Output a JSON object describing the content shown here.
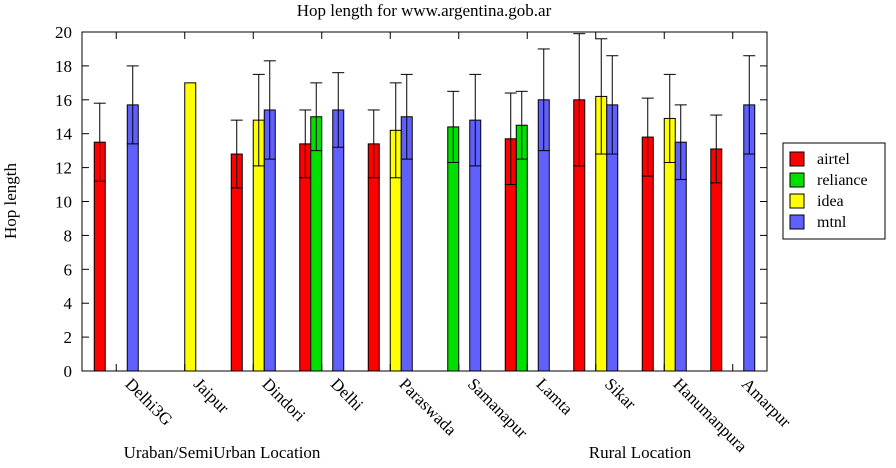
{
  "chart_data": {
    "type": "bar",
    "title": "Hop length for www.argentina.gob.ar",
    "xlabel": "",
    "ylabel": "Hop length",
    "ylim": [
      0,
      20
    ],
    "yticks": [
      0,
      2,
      4,
      6,
      8,
      10,
      12,
      14,
      16,
      18,
      20
    ],
    "grid": false,
    "legend_position": "right",
    "categories": [
      "Delhi3G",
      "Jaipur",
      "Dindori",
      "Delhi",
      "Paraswada",
      "Samanapur",
      "Lamta",
      "Sikar",
      "Hanumanpura",
      "Amarpur"
    ],
    "series": [
      {
        "name": "airtel",
        "color": "#ff0000",
        "values": [
          13.5,
          null,
          12.8,
          13.4,
          13.4,
          null,
          13.7,
          16.0,
          13.8,
          13.1
        ],
        "error": [
          2.3,
          null,
          2.0,
          2.0,
          2.0,
          null,
          2.7,
          3.9,
          2.3,
          2.0
        ]
      },
      {
        "name": "reliance",
        "color": "#00e000",
        "values": [
          null,
          null,
          null,
          15.0,
          null,
          14.4,
          14.5,
          null,
          null,
          null
        ],
        "error": [
          null,
          null,
          null,
          2.0,
          null,
          2.1,
          2.0,
          null,
          null,
          null
        ]
      },
      {
        "name": "idea",
        "color": "#ffff00",
        "values": [
          null,
          17.0,
          14.8,
          null,
          14.2,
          null,
          null,
          16.2,
          14.9,
          null
        ],
        "error": [
          null,
          null,
          2.7,
          null,
          2.8,
          null,
          null,
          3.4,
          2.6,
          null
        ]
      },
      {
        "name": "mtnl",
        "color": "#6060ff",
        "values": [
          15.7,
          null,
          15.4,
          15.4,
          15.0,
          14.8,
          16.0,
          15.7,
          13.5,
          15.7
        ],
        "error": [
          2.3,
          null,
          2.9,
          2.2,
          2.5,
          2.7,
          3.0,
          2.9,
          2.2,
          2.9
        ]
      }
    ],
    "annotations": [
      "Uraban/SemiUrban Location",
      "Rural Location"
    ]
  }
}
